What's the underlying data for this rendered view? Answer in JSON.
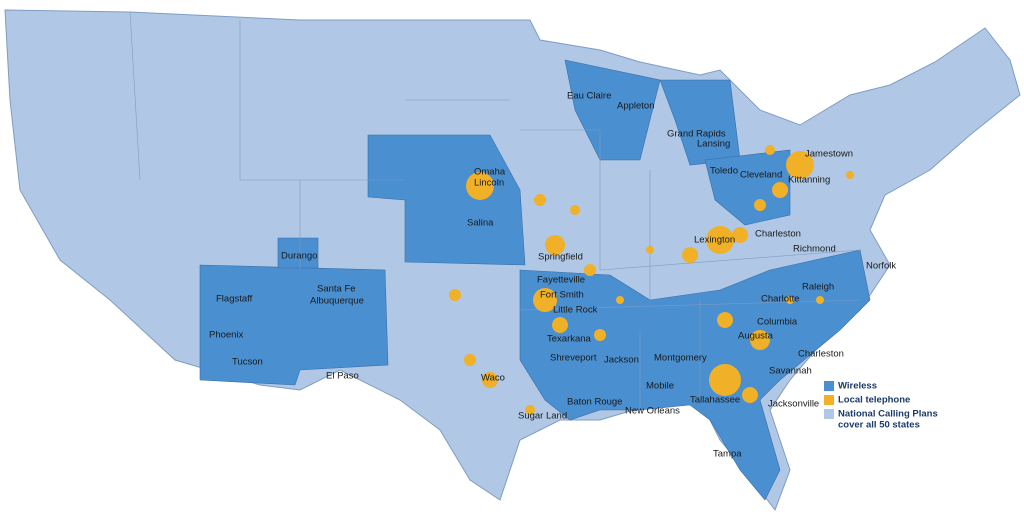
{
  "map": {
    "cities": [
      "Eau Claire",
      "Appleton",
      "Grand Rapids",
      "Lansing",
      "Jamestown",
      "Omaha",
      "Lincoln",
      "Toledo",
      "Cleveland",
      "Kittanning",
      "Salina",
      "Lexington",
      "Charleston",
      "Richmond",
      "Springfield",
      "Durango",
      "Norfolk",
      "Fayetteville",
      "Fort Smith",
      "Flagstaff",
      "Santa Fe",
      "Albuquerque",
      "Charlotte",
      "Raleigh",
      "Little Rock",
      "Columbia",
      "Phoenix",
      "Augusta",
      "Texarkana",
      "Charleston",
      "Tucson",
      "Shreveport",
      "Jackson",
      "Montgomery",
      "Savannah",
      "El Paso",
      "Waco",
      "Mobile",
      "Tallahassee",
      "Baton Rouge",
      "Jacksonville",
      "New Orleans",
      "Sugar Land",
      "Tampa"
    ],
    "legend": [
      {
        "label": [
          "Wireless"
        ],
        "color": "#4a8fd0"
      },
      {
        "label": [
          "Local telephone"
        ],
        "color": "#f0b028"
      },
      {
        "label": [
          "National Calling Plans",
          "cover all 50 states"
        ],
        "color": "#b0c8e6"
      }
    ]
  }
}
